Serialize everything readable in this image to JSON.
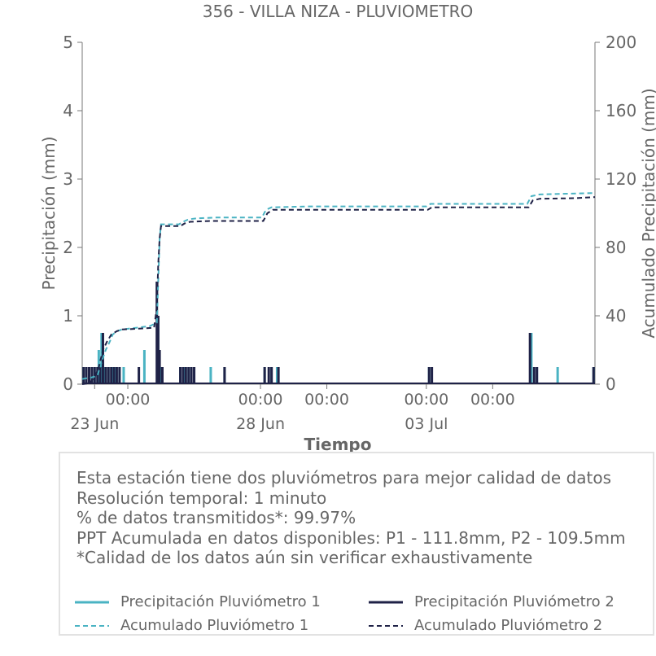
{
  "chart_data": {
    "type": "bar+line",
    "title": "356 - VILLA NIZA - PLUVIOMETRO",
    "xlabel": "Tiempo",
    "ylabel": "Precipitación (mm)",
    "y2label": "Acumulado Precipitación (mm)",
    "ylim": [
      0,
      5
    ],
    "y2lim": [
      0,
      200
    ],
    "yticks": [
      0,
      1,
      2,
      3,
      4,
      5
    ],
    "y2ticks": [
      0,
      40,
      80,
      120,
      160,
      200
    ],
    "xlim": [
      "2023-06-22T15:00",
      "2023-07-08T02:00"
    ],
    "xticks_major": [
      {
        "x": "2023-06-23T00:00",
        "time": "",
        "date": "23 Jun"
      },
      {
        "x": "2023-06-24T00:00",
        "time": "00:00",
        "date": ""
      },
      {
        "x": "2023-06-28T00:00",
        "time": "00:00",
        "date": "28 Jun"
      },
      {
        "x": "2023-06-30T00:00",
        "time": "00:00",
        "date": ""
      },
      {
        "x": "2023-07-03T00:00",
        "time": "00:00",
        "date": "03 Jul"
      },
      {
        "x": "2023-07-05T00:00",
        "time": "00:00",
        "date": ""
      }
    ],
    "grid": false,
    "series": [
      {
        "name": "Precipitación Pluviómetro 1",
        "type": "bar",
        "color": "#4ab3c3",
        "axis": "left",
        "points": [
          [
            "2023-06-22T16:00",
            0.25
          ],
          [
            "2023-06-22T20:00",
            0.25
          ],
          [
            "2023-06-23T00:00",
            0.25
          ],
          [
            "2023-06-23T03:00",
            0.5
          ],
          [
            "2023-06-23T05:00",
            0.75
          ],
          [
            "2023-06-23T07:00",
            0.25
          ],
          [
            "2023-06-23T10:00",
            0.25
          ],
          [
            "2023-06-23T13:00",
            0.25
          ],
          [
            "2023-06-23T15:00",
            0.25
          ],
          [
            "2023-06-23T18:00",
            0.25
          ],
          [
            "2023-06-23T21:00",
            0.25
          ],
          [
            "2023-06-24T12:00",
            0.5
          ],
          [
            "2023-06-24T22:00",
            1.0
          ],
          [
            "2023-06-25T00:00",
            0.25
          ],
          [
            "2023-06-25T14:00",
            0.25
          ],
          [
            "2023-06-25T17:00",
            0.25
          ],
          [
            "2023-06-25T20:00",
            0.25
          ],
          [
            "2023-06-26T00:00",
            0.25
          ],
          [
            "2023-06-26T12:00",
            0.25
          ],
          [
            "2023-06-26T22:00",
            0.25
          ],
          [
            "2023-06-28T03:00",
            0.25
          ],
          [
            "2023-06-28T08:00",
            0.25
          ],
          [
            "2023-06-28T12:00",
            0.25
          ],
          [
            "2023-07-03T02:00",
            0.25
          ],
          [
            "2023-07-06T04:00",
            0.75
          ],
          [
            "2023-07-06T08:00",
            0.25
          ],
          [
            "2023-07-06T23:00",
            0.25
          ],
          [
            "2023-07-08T01:00",
            0.25
          ]
        ]
      },
      {
        "name": "Precipitación Pluviómetro 2",
        "type": "bar",
        "color": "#1f2247",
        "axis": "left",
        "points": [
          [
            "2023-06-22T16:00",
            0.25
          ],
          [
            "2023-06-22T18:00",
            0.25
          ],
          [
            "2023-06-22T20:00",
            0.25
          ],
          [
            "2023-06-22T22:00",
            0.25
          ],
          [
            "2023-06-23T00:00",
            0.25
          ],
          [
            "2023-06-23T02:00",
            0.25
          ],
          [
            "2023-06-23T04:00",
            0.25
          ],
          [
            "2023-06-23T06:00",
            0.75
          ],
          [
            "2023-06-23T08:00",
            0.25
          ],
          [
            "2023-06-23T10:00",
            0.25
          ],
          [
            "2023-06-23T12:00",
            0.25
          ],
          [
            "2023-06-23T14:00",
            0.25
          ],
          [
            "2023-06-23T16:00",
            0.25
          ],
          [
            "2023-06-23T18:00",
            0.25
          ],
          [
            "2023-06-24T08:00",
            0.25
          ],
          [
            "2023-06-24T21:00",
            1.5
          ],
          [
            "2023-06-24T22:00",
            1.0
          ],
          [
            "2023-06-24T23:00",
            0.5
          ],
          [
            "2023-06-25T01:00",
            0.25
          ],
          [
            "2023-06-25T14:00",
            0.25
          ],
          [
            "2023-06-25T16:00",
            0.25
          ],
          [
            "2023-06-25T18:00",
            0.25
          ],
          [
            "2023-06-25T20:00",
            0.25
          ],
          [
            "2023-06-25T22:00",
            0.25
          ],
          [
            "2023-06-26T00:00",
            0.25
          ],
          [
            "2023-06-26T22:00",
            0.25
          ],
          [
            "2023-06-28T03:00",
            0.25
          ],
          [
            "2023-06-28T06:00",
            0.25
          ],
          [
            "2023-06-28T08:00",
            0.25
          ],
          [
            "2023-06-28T13:00",
            0.25
          ],
          [
            "2023-07-03T02:00",
            0.25
          ],
          [
            "2023-07-03T04:00",
            0.25
          ],
          [
            "2023-07-06T03:00",
            0.75
          ],
          [
            "2023-07-06T06:00",
            0.25
          ],
          [
            "2023-07-06T08:00",
            0.25
          ],
          [
            "2023-07-08T01:00",
            0.25
          ]
        ]
      },
      {
        "name": "Acumulado Pluviómetro 1",
        "type": "line",
        "dash": true,
        "color": "#4ab3c3",
        "axis": "right",
        "points": [
          [
            "2023-06-22T15:00",
            3
          ],
          [
            "2023-06-22T22:00",
            4
          ],
          [
            "2023-06-23T02:00",
            5
          ],
          [
            "2023-06-23T05:00",
            13
          ],
          [
            "2023-06-23T08:00",
            20
          ],
          [
            "2023-06-23T11:00",
            25
          ],
          [
            "2023-06-23T13:00",
            29
          ],
          [
            "2023-06-23T16:00",
            31
          ],
          [
            "2023-06-23T20:00",
            32
          ],
          [
            "2023-06-24T06:00",
            33
          ],
          [
            "2023-06-24T16:00",
            34
          ],
          [
            "2023-06-24T21:00",
            36
          ],
          [
            "2023-06-24T22:00",
            60
          ],
          [
            "2023-06-24T23:00",
            85
          ],
          [
            "2023-06-25T00:00",
            93.5
          ],
          [
            "2023-06-25T13:00",
            93.5
          ],
          [
            "2023-06-25T16:00",
            95
          ],
          [
            "2023-06-25T20:00",
            96.5
          ],
          [
            "2023-06-26T02:00",
            97
          ],
          [
            "2023-06-26T16:00",
            97.5
          ],
          [
            "2023-06-28T01:00",
            97.5
          ],
          [
            "2023-06-28T04:00",
            102
          ],
          [
            "2023-06-28T08:00",
            103.5
          ],
          [
            "2023-06-29T12:00",
            104
          ],
          [
            "2023-07-03T00:00",
            104
          ],
          [
            "2023-07-03T03:00",
            105.5
          ],
          [
            "2023-07-06T01:00",
            105.5
          ],
          [
            "2023-07-06T04:00",
            110
          ],
          [
            "2023-07-06T10:00",
            111
          ],
          [
            "2023-07-07T00:00",
            111.3
          ],
          [
            "2023-07-08T02:00",
            111.8
          ]
        ]
      },
      {
        "name": "Acumulado Pluviómetro 2",
        "type": "line",
        "dash": true,
        "color": "#1f2247",
        "axis": "right",
        "points": [
          [
            "2023-06-22T15:00",
            0
          ],
          [
            "2023-06-22T20:00",
            0.5
          ],
          [
            "2023-06-23T00:00",
            4
          ],
          [
            "2023-06-23T03:00",
            10
          ],
          [
            "2023-06-23T06:00",
            20
          ],
          [
            "2023-06-23T09:00",
            25
          ],
          [
            "2023-06-23T12:00",
            29
          ],
          [
            "2023-06-23T16:00",
            31
          ],
          [
            "2023-06-23T20:00",
            32
          ],
          [
            "2023-06-24T08:00",
            32.5
          ],
          [
            "2023-06-24T19:00",
            33
          ],
          [
            "2023-06-24T21:00",
            45
          ],
          [
            "2023-06-24T22:00",
            70
          ],
          [
            "2023-06-24T23:00",
            85
          ],
          [
            "2023-06-25T00:00",
            92.5
          ],
          [
            "2023-06-25T14:00",
            92.5
          ],
          [
            "2023-06-25T17:00",
            94
          ],
          [
            "2023-06-25T21:00",
            95
          ],
          [
            "2023-06-26T12:00",
            95.5
          ],
          [
            "2023-06-28T02:00",
            95.5
          ],
          [
            "2023-06-28T05:00",
            100
          ],
          [
            "2023-06-28T09:00",
            102
          ],
          [
            "2023-07-03T01:00",
            102
          ],
          [
            "2023-07-03T04:00",
            103.5
          ],
          [
            "2023-07-06T02:00",
            103.5
          ],
          [
            "2023-07-06T05:00",
            107.5
          ],
          [
            "2023-07-06T10:00",
            108.5
          ],
          [
            "2023-07-07T12:00",
            108.8
          ],
          [
            "2023-07-08T02:00",
            109.5
          ]
        ]
      }
    ]
  },
  "info": {
    "lines": [
      "Esta estación tiene dos pluviómetros para mejor calidad de datos",
      "Resolución temporal: 1 minuto",
      "% de datos transmitidos*: 99.97%",
      "PPT Acumulada en datos disponibles: P1 - 111.8mm, P2 - 109.5mm",
      "*Calidad de los datos aún sin verificar exhaustivamente"
    ]
  },
  "legend": {
    "items": [
      {
        "label": "Precipitación Pluviómetro 1",
        "color": "#4ab3c3",
        "dash": false
      },
      {
        "label": "Precipitación Pluviómetro 2",
        "color": "#1f2247",
        "dash": false
      },
      {
        "label": "Acumulado Pluviómetro 1",
        "color": "#4ab3c3",
        "dash": true
      },
      {
        "label": "Acumulado Pluviómetro 2",
        "color": "#1f2247",
        "dash": true
      }
    ]
  }
}
